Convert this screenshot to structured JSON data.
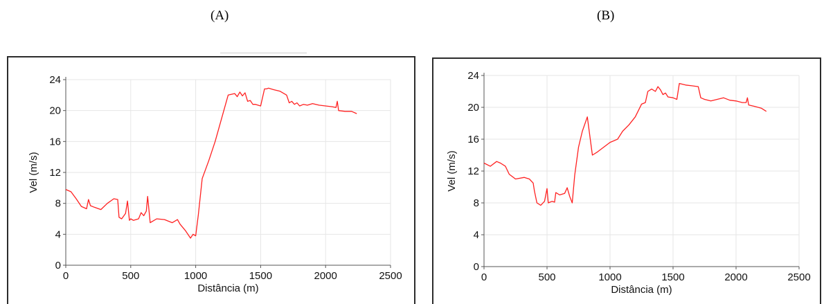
{
  "panels": {
    "a_label": "(A)",
    "b_label": "(B)"
  },
  "colors": {
    "line": "#ff2020",
    "grid": "#e6e6e6",
    "axis": "#555555"
  },
  "chart_data": [
    {
      "type": "line",
      "panel": "(A)",
      "xlabel": "Distância (m)",
      "ylabel": "Vel (m/s)",
      "xlim": [
        0,
        2500
      ],
      "ylim": [
        0,
        24
      ],
      "xticks": [
        0,
        500,
        1000,
        1500,
        2000,
        2500
      ],
      "yticks": [
        0,
        4,
        8,
        12,
        16,
        20,
        24
      ],
      "grid": true,
      "series": [
        {
          "x": [
            0,
            40,
            80,
            120,
            160,
            175,
            190,
            220,
            270,
            320,
            370,
            400,
            410,
            430,
            460,
            475,
            490,
            500,
            520,
            560,
            580,
            600,
            620,
            630,
            650,
            670,
            700,
            760,
            820,
            860,
            880,
            920,
            960,
            980,
            1000,
            1020,
            1050,
            1100,
            1150,
            1200,
            1250,
            1300,
            1320,
            1340,
            1360,
            1380,
            1400,
            1420,
            1440,
            1460,
            1500,
            1530,
            1545,
            1560,
            1600,
            1650,
            1700,
            1720,
            1740,
            1760,
            1780,
            1800,
            1830,
            1860,
            1900,
            1950,
            2000,
            2050,
            2080,
            2090,
            2100,
            2150,
            2200,
            2240
          ],
          "y": [
            9.8,
            9.5,
            8.6,
            7.6,
            7.3,
            8.5,
            7.7,
            7.5,
            7.2,
            8.0,
            8.6,
            8.5,
            6.2,
            6.0,
            6.7,
            8.3,
            5.8,
            6.0,
            5.8,
            6.0,
            6.8,
            6.4,
            7.0,
            8.9,
            5.5,
            5.7,
            6.0,
            5.9,
            5.5,
            5.9,
            5.3,
            4.5,
            3.5,
            4.0,
            3.8,
            6.5,
            11.2,
            13.5,
            16.0,
            19.0,
            22.0,
            22.2,
            21.8,
            22.4,
            21.9,
            22.3,
            21.2,
            21.3,
            20.8,
            20.8,
            20.6,
            22.8,
            22.8,
            22.9,
            22.7,
            22.5,
            22.0,
            21.0,
            21.2,
            20.8,
            21.0,
            20.6,
            20.8,
            20.7,
            20.9,
            20.7,
            20.6,
            20.5,
            20.4,
            21.2,
            20.0,
            19.9,
            19.9,
            19.6
          ]
        }
      ]
    },
    {
      "type": "line",
      "panel": "(B)",
      "xlabel": "Distância (m)",
      "ylabel": "Vel (m/s)",
      "xlim": [
        0,
        2500
      ],
      "ylim": [
        0,
        24
      ],
      "xticks": [
        0,
        500,
        1000,
        1500,
        2000,
        2500
      ],
      "yticks": [
        0,
        4,
        8,
        12,
        16,
        20,
        24
      ],
      "grid": true,
      "series": [
        {
          "x": [
            0,
            50,
            100,
            130,
            170,
            200,
            250,
            320,
            360,
            390,
            400,
            420,
            450,
            480,
            500,
            510,
            540,
            560,
            570,
            600,
            640,
            660,
            680,
            700,
            720,
            750,
            780,
            820,
            860,
            900,
            950,
            1000,
            1060,
            1100,
            1150,
            1200,
            1250,
            1280,
            1300,
            1330,
            1360,
            1380,
            1400,
            1420,
            1440,
            1460,
            1500,
            1530,
            1550,
            1600,
            1650,
            1700,
            1720,
            1750,
            1800,
            1850,
            1900,
            1950,
            2000,
            2050,
            2080,
            2090,
            2100,
            2150,
            2200,
            2240
          ],
          "y": [
            13.0,
            12.6,
            13.2,
            13.0,
            12.6,
            11.6,
            11.0,
            11.2,
            11.0,
            10.5,
            9.5,
            8.0,
            7.7,
            8.2,
            9.8,
            8.0,
            8.2,
            8.1,
            9.3,
            9.0,
            9.2,
            9.9,
            8.8,
            8.0,
            11.5,
            15.0,
            17.0,
            18.8,
            14.0,
            14.4,
            15.0,
            15.6,
            16.0,
            17.0,
            17.8,
            18.8,
            20.4,
            20.6,
            22.0,
            22.3,
            22.0,
            22.6,
            22.2,
            21.6,
            21.8,
            21.3,
            21.2,
            21.0,
            23.0,
            22.8,
            22.7,
            22.6,
            21.2,
            21.0,
            20.8,
            21.0,
            21.2,
            20.9,
            20.8,
            20.6,
            20.6,
            21.2,
            20.3,
            20.1,
            19.9,
            19.5
          ]
        }
      ]
    }
  ]
}
